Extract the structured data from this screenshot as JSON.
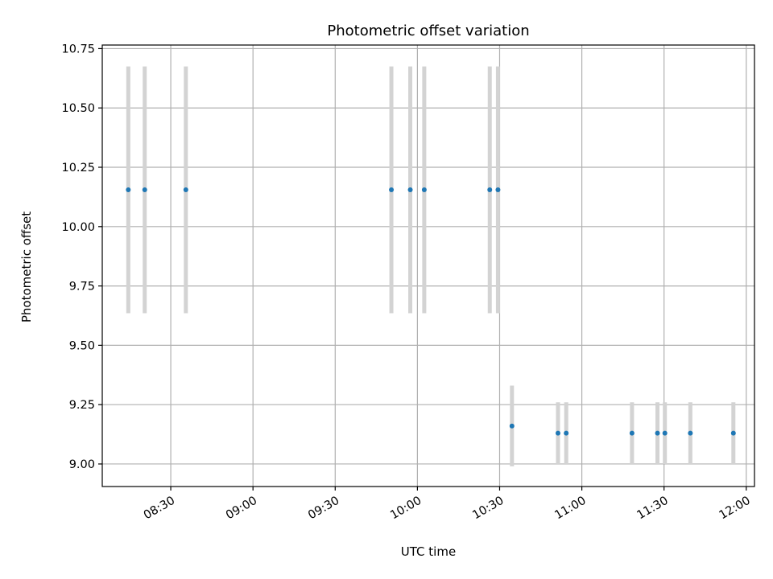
{
  "chart_data": {
    "type": "scatter",
    "title": "Photometric offset variation",
    "xlabel": "UTC time",
    "ylabel": "Photometric offset",
    "grid": true,
    "xlim_minutes": [
      485,
      723
    ],
    "ylim": [
      8.905,
      10.765
    ],
    "x_ticks": [
      {
        "minutes": 510,
        "label": "08:30"
      },
      {
        "minutes": 540,
        "label": "09:00"
      },
      {
        "minutes": 570,
        "label": "09:30"
      },
      {
        "minutes": 600,
        "label": "10:00"
      },
      {
        "minutes": 630,
        "label": "10:30"
      },
      {
        "minutes": 660,
        "label": "11:00"
      },
      {
        "minutes": 690,
        "label": "11:30"
      },
      {
        "minutes": 720,
        "label": "12:00"
      }
    ],
    "y_ticks": [
      {
        "value": 9.0,
        "label": "9.00"
      },
      {
        "value": 9.25,
        "label": "9.25"
      },
      {
        "value": 9.5,
        "label": "9.50"
      },
      {
        "value": 9.75,
        "label": "9.75"
      },
      {
        "value": 10.0,
        "label": "10.00"
      },
      {
        "value": 10.25,
        "label": "10.25"
      },
      {
        "value": 10.5,
        "label": "10.50"
      },
      {
        "value": 10.75,
        "label": "10.75"
      }
    ],
    "point_color": "#1f77b4",
    "errorbar_color": "#d3d3d3",
    "points": [
      {
        "time": "08:14",
        "minutes": 494.5,
        "offset": 10.155,
        "error": 0.52
      },
      {
        "time": "08:20",
        "minutes": 500.5,
        "offset": 10.155,
        "error": 0.52
      },
      {
        "time": "08:35",
        "minutes": 515.5,
        "offset": 10.155,
        "error": 0.52
      },
      {
        "time": "09:50",
        "minutes": 590.5,
        "offset": 10.155,
        "error": 0.52
      },
      {
        "time": "09:57",
        "minutes": 597.4,
        "offset": 10.155,
        "error": 0.52
      },
      {
        "time": "10:02",
        "minutes": 602.5,
        "offset": 10.155,
        "error": 0.52
      },
      {
        "time": "10:26",
        "minutes": 626.4,
        "offset": 10.155,
        "error": 0.52
      },
      {
        "time": "10:29",
        "minutes": 629.4,
        "offset": 10.155,
        "error": 0.52
      },
      {
        "time": "10:34",
        "minutes": 634.5,
        "offset": 9.16,
        "error": 0.17
      },
      {
        "time": "10:51",
        "minutes": 651.3,
        "offset": 9.13,
        "error": 0.13
      },
      {
        "time": "10:54",
        "minutes": 654.3,
        "offset": 9.13,
        "error": 0.13
      },
      {
        "time": "11:18",
        "minutes": 678.3,
        "offset": 9.13,
        "error": 0.13
      },
      {
        "time": "11:27",
        "minutes": 687.6,
        "offset": 9.13,
        "error": 0.13
      },
      {
        "time": "11:30",
        "minutes": 690.3,
        "offset": 9.13,
        "error": 0.13
      },
      {
        "time": "11:39",
        "minutes": 699.6,
        "offset": 9.13,
        "error": 0.13
      },
      {
        "time": "11:55",
        "minutes": 715.3,
        "offset": 9.13,
        "error": 0.13
      }
    ]
  }
}
